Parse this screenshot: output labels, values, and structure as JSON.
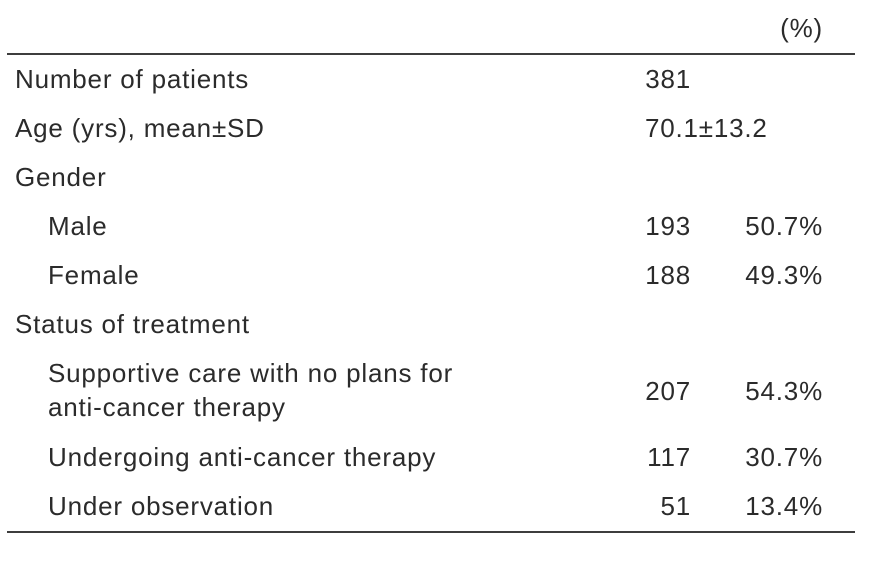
{
  "table": {
    "header": {
      "percent_label": "(%)"
    },
    "rows": [
      {
        "label": "Number of patients",
        "count": "381",
        "percent": ""
      },
      {
        "label": "Age (yrs), mean±SD",
        "count": "70.1±13.2",
        "percent": ""
      },
      {
        "label": "Gender",
        "count": "",
        "percent": ""
      },
      {
        "label": "Male",
        "count": "193",
        "percent": "50.7%"
      },
      {
        "label": "Female",
        "count": "188",
        "percent": "49.3%"
      },
      {
        "label": "Status of treatment",
        "count": "",
        "percent": ""
      },
      {
        "label": "Supportive care with no plans for\nanti-cancer therapy",
        "count": "207",
        "percent": "54.3%"
      },
      {
        "label": "Undergoing anti-cancer therapy",
        "count": "117",
        "percent": "30.7%"
      },
      {
        "label": "Under observation",
        "count": "51",
        "percent": "13.4%"
      }
    ],
    "colors": {
      "text": "#2b2b2b",
      "rule": "#3d3d3d",
      "background": "#ffffff"
    }
  }
}
